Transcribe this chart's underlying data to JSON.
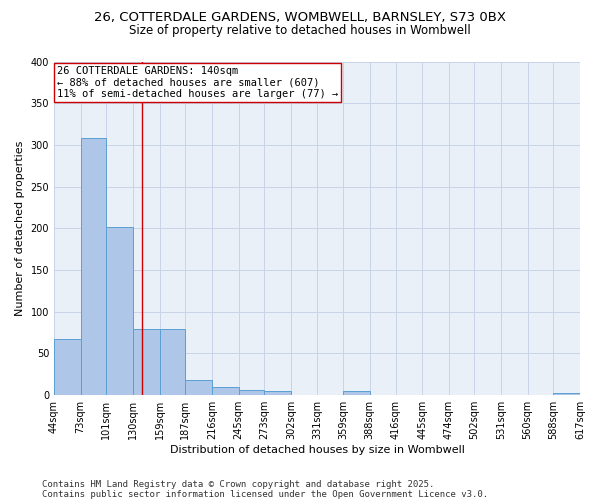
{
  "title_line1": "26, COTTERDALE GARDENS, WOMBWELL, BARNSLEY, S73 0BX",
  "title_line2": "Size of property relative to detached houses in Wombwell",
  "xlabel": "Distribution of detached houses by size in Wombwell",
  "ylabel": "Number of detached properties",
  "bar_edges": [
    44,
    73,
    101,
    130,
    159,
    187,
    216,
    245,
    273,
    302,
    331,
    359,
    388,
    416,
    445,
    474,
    502,
    531,
    560,
    588,
    617
  ],
  "bar_heights": [
    67,
    308,
    202,
    79,
    79,
    18,
    10,
    6,
    5,
    0,
    0,
    5,
    0,
    0,
    0,
    0,
    0,
    0,
    0,
    3
  ],
  "bar_color": "#aec6e8",
  "bar_edge_color": "#5a9fd4",
  "grid_color": "#c8d4e8",
  "background_color": "#eaf0f8",
  "annotation_text": "26 COTTERDALE GARDENS: 140sqm\n← 88% of detached houses are smaller (607)\n11% of semi-detached houses are larger (77) →",
  "annotation_box_facecolor": "#ffffff",
  "annotation_box_edgecolor": "#cc0000",
  "vline_x": 140,
  "vline_color": "#cc0000",
  "ylim": [
    0,
    400
  ],
  "yticks": [
    0,
    50,
    100,
    150,
    200,
    250,
    300,
    350,
    400
  ],
  "footnote": "Contains HM Land Registry data © Crown copyright and database right 2025.\nContains public sector information licensed under the Open Government Licence v3.0.",
  "title_fontsize": 9.5,
  "subtitle_fontsize": 8.5,
  "axis_label_fontsize": 8,
  "tick_fontsize": 7,
  "annotation_fontsize": 7.5,
  "footnote_fontsize": 6.5
}
